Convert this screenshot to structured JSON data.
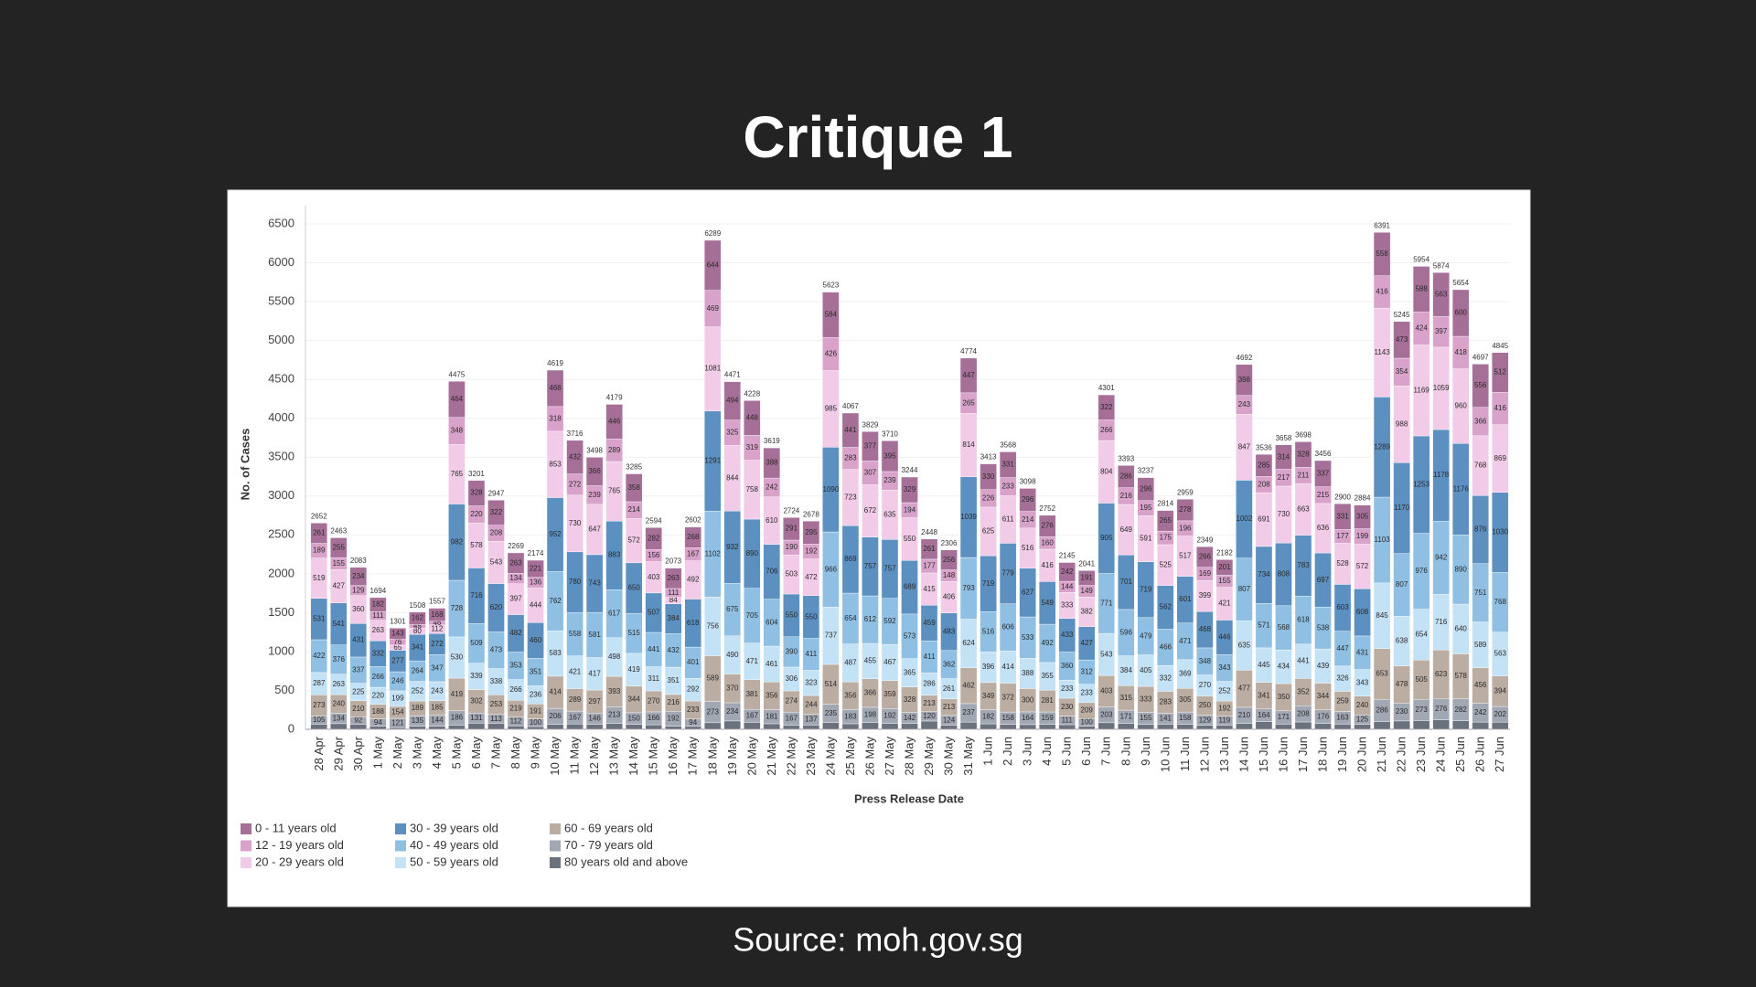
{
  "slide": {
    "title": "Critique 1",
    "source": "Source: moh.gov.sg"
  },
  "chart_data": {
    "type": "bar",
    "stacked": true,
    "grid": true,
    "legend": "bottom-left",
    "xlabel": "Press Release Date",
    "ylabel": "No. of Cases",
    "ylim": [
      0,
      6500
    ],
    "yticks": [
      0,
      500,
      1000,
      1500,
      2000,
      2500,
      3000,
      3500,
      4000,
      4500,
      5000,
      5500,
      6000,
      6500
    ],
    "categories": [
      "28 Apr",
      "29 Apr",
      "30 Apr",
      "1 May",
      "2 May",
      "3 May",
      "4 May",
      "5 May",
      "6 May",
      "7 May",
      "8 May",
      "9 May",
      "10 May",
      "11 May",
      "12 May",
      "13 May",
      "14 May",
      "15 May",
      "16 May",
      "17 May",
      "18 May",
      "19 May",
      "20 May",
      "21 May",
      "22 May",
      "23 May",
      "24 May",
      "25 May",
      "26 May",
      "27 May",
      "28 May",
      "29 May",
      "30 May",
      "31 May",
      "1 Jun",
      "2 Jun",
      "3 Jun",
      "4 Jun",
      "5 Jun",
      "6 Jun",
      "7 Jun",
      "8 Jun",
      "9 Jun",
      "10 Jun",
      "11 Jun",
      "12 Jun",
      "13 Jun",
      "14 Jun",
      "15 Jun",
      "16 Jun",
      "17 Jun",
      "18 Jun",
      "19 Jun",
      "20 Jun",
      "21 Jun",
      "22 Jun",
      "23 Jun",
      "24 Jun",
      "25 Jun",
      "26 Jun",
      "27 Jun"
    ],
    "totals": [
      2652,
      2463,
      2083,
      1694,
      1301,
      1508,
      1557,
      4475,
      3201,
      2947,
      2269,
      2174,
      4619,
      3716,
      3498,
      4179,
      3285,
      2594,
      2073,
      2602,
      6289,
      4471,
      4228,
      3619,
      2724,
      2678,
      5623,
      4067,
      3829,
      3710,
      3244,
      2448,
      2306,
      4774,
      3413,
      3568,
      3098,
      2752,
      2145,
      2041,
      4301,
      3393,
      3237,
      2814,
      2959,
      2349,
      2182,
      4692,
      3536,
      3658,
      3698,
      3456,
      2900,
      2884,
      6391,
      5245,
      5954,
      5874,
      5654,
      4697,
      4845
    ],
    "series": [
      {
        "name": "0 - 11 years old",
        "color": "#a66f98",
        "data_labels": true,
        "values": [
          261,
          255,
          234,
          182,
          143,
          162,
          168,
          464,
          328,
          322,
          263,
          221,
          468,
          432,
          366,
          446,
          358,
          282,
          263,
          268,
          644,
          494,
          448,
          388,
          291,
          295,
          584,
          441,
          377,
          395,
          329,
          261,
          256,
          447,
          330,
          331,
          296,
          276,
          242,
          191,
          322,
          286,
          296,
          265,
          278,
          266,
          201,
          398,
          285,
          314,
          328,
          337,
          331,
          305,
          558,
          473,
          588,
          563,
          600,
          556,
          512
        ]
      },
      {
        "name": "12 - 19 years old",
        "color": "#d9a2cb",
        "data_labels": true,
        "values": [
          189,
          155,
          129,
          111,
          76,
          45,
          46,
          348,
          220,
          208,
          134,
          136,
          318,
          272,
          239,
          289,
          214,
          156,
          111,
          167,
          469,
          325,
          319,
          242,
          190,
          192,
          426,
          283,
          307,
          239,
          194,
          177,
          148,
          265,
          226,
          233,
          214,
          160,
          144,
          149,
          266,
          216,
          195,
          175,
          196,
          169,
          155,
          243,
          208,
          217,
          211,
          215,
          177,
          199,
          416,
          354,
          424,
          397,
          418,
          366,
          416
        ]
      },
      {
        "name": "20 - 29 years old",
        "color": "#f2cbe8",
        "data_labels": true,
        "values": [
          519,
          427,
          360,
          263,
          65,
          80,
          112,
          765,
          578,
          543,
          397,
          444,
          853,
          730,
          647,
          765,
          572,
          403,
          84,
          492,
          1081,
          844,
          758,
          610,
          503,
          472,
          985,
          723,
          672,
          635,
          550,
          415,
          406,
          814,
          625,
          611,
          516,
          416,
          333,
          382,
          804,
          649,
          591,
          525,
          517,
          399,
          421,
          847,
          691,
          730,
          663,
          636,
          528,
          572,
          1143,
          988,
          1169,
          1059,
          960,
          768,
          869
        ]
      },
      {
        "name": "30 - 39 years old",
        "color": "#5c90c0",
        "data_labels": true,
        "values": [
          531,
          541,
          431,
          332,
          277,
          341,
          272,
          982,
          716,
          620,
          482,
          460,
          952,
          780,
          743,
          883,
          650,
          507,
          384,
          618,
          1291,
          932,
          890,
          706,
          550,
          550,
          1090,
          869,
          757,
          757,
          689,
          459,
          483,
          1039,
          719,
          779,
          627,
          549,
          433,
          427,
          905,
          701,
          719,
          562,
          601,
          468,
          446,
          1002,
          734,
          808,
          783,
          697,
          603,
          608,
          1289,
          1170,
          1253,
          1178,
          1176,
          876,
          1030
        ]
      },
      {
        "name": "40 - 49 years old",
        "color": "#8fc0e4",
        "data_labels": true,
        "values": [
          422,
          376,
          337,
          266,
          246,
          264,
          347,
          728,
          509,
          473,
          353,
          351,
          762,
          558,
          581,
          617,
          515,
          441,
          432,
          401,
          1102,
          675,
          705,
          604,
          390,
          411,
          966,
          654,
          612,
          592,
          573,
          411,
          362,
          793,
          516,
          606,
          533,
          492,
          360,
          312,
          771,
          596,
          479,
          466,
          471,
          348,
          343,
          807,
          571,
          568,
          618,
          538,
          447,
          431,
          1103,
          807,
          976,
          942,
          890,
          751,
          768
        ]
      },
      {
        "name": "50 - 59 years old",
        "color": "#c4e2f5",
        "data_labels": true,
        "values": [
          287,
          263,
          225,
          220,
          199,
          252,
          243,
          530,
          339,
          338,
          266,
          236,
          583,
          421,
          417,
          498,
          419,
          311,
          351,
          292,
          756,
          490,
          471,
          461,
          306,
          323,
          737,
          487,
          455,
          467,
          365,
          286,
          261,
          624,
          396,
          414,
          388,
          355,
          233,
          233,
          543,
          384,
          405,
          332,
          369,
          270,
          252,
          635,
          445,
          434,
          441,
          439,
          326,
          343,
          845,
          638,
          654,
          716,
          640,
          589,
          563
        ]
      },
      {
        "name": "60 - 69 years old",
        "color": "#bcada3",
        "data_labels": true,
        "values": [
          273,
          240,
          210,
          188,
          154,
          189,
          185,
          419,
          302,
          253,
          219,
          191,
          414,
          289,
          297,
          393,
          344,
          270,
          216,
          233,
          589,
          370,
          381,
          356,
          274,
          244,
          514,
          356,
          366,
          359,
          328,
          213,
          213,
          462,
          349,
          372,
          300,
          281,
          230,
          209,
          403,
          315,
          333,
          283,
          305,
          250,
          192,
          477,
          341,
          350,
          352,
          344,
          259,
          240,
          653,
          478,
          505,
          623,
          578,
          456,
          394
        ]
      },
      {
        "name": "70 - 79 years old",
        "color": "#a1a8b4",
        "data_labels": true,
        "values": [
          105,
          134,
          92,
          94,
          121,
          135,
          144,
          186,
          131,
          113,
          112,
          100,
          206,
          167,
          146,
          213,
          150,
          166,
          192,
          94,
          273,
          234,
          167,
          181,
          167,
          137,
          235,
          183,
          198,
          192,
          142,
          120,
          124,
          237,
          182,
          158,
          164,
          159,
          111,
          100,
          203,
          171,
          155,
          141,
          158,
          129,
          119,
          210,
          164,
          171,
          208,
          176,
          163,
          125,
          286,
          230,
          273,
          276,
          282,
          242,
          202
        ]
      },
      {
        "name": "80 years old and above",
        "color": "#6b727e",
        "data_labels": false,
        "values": [
          65,
          72,
          65,
          38,
          20,
          40,
          40,
          53,
          78,
          77,
          43,
          35,
          63,
          67,
          62,
          75,
          63,
          58,
          40,
          37,
          84,
          107,
          89,
          71,
          53,
          54,
          86,
          71,
          85,
          74,
          74,
          106,
          53,
          93,
          70,
          64,
          60,
          64,
          59,
          38,
          84,
          75,
          64,
          65,
          64,
          50,
          53,
          73,
          97,
          66,
          94,
          74,
          66,
          61,
          98,
          107,
          112,
          120,
          110,
          93,
          91
        ]
      }
    ]
  }
}
